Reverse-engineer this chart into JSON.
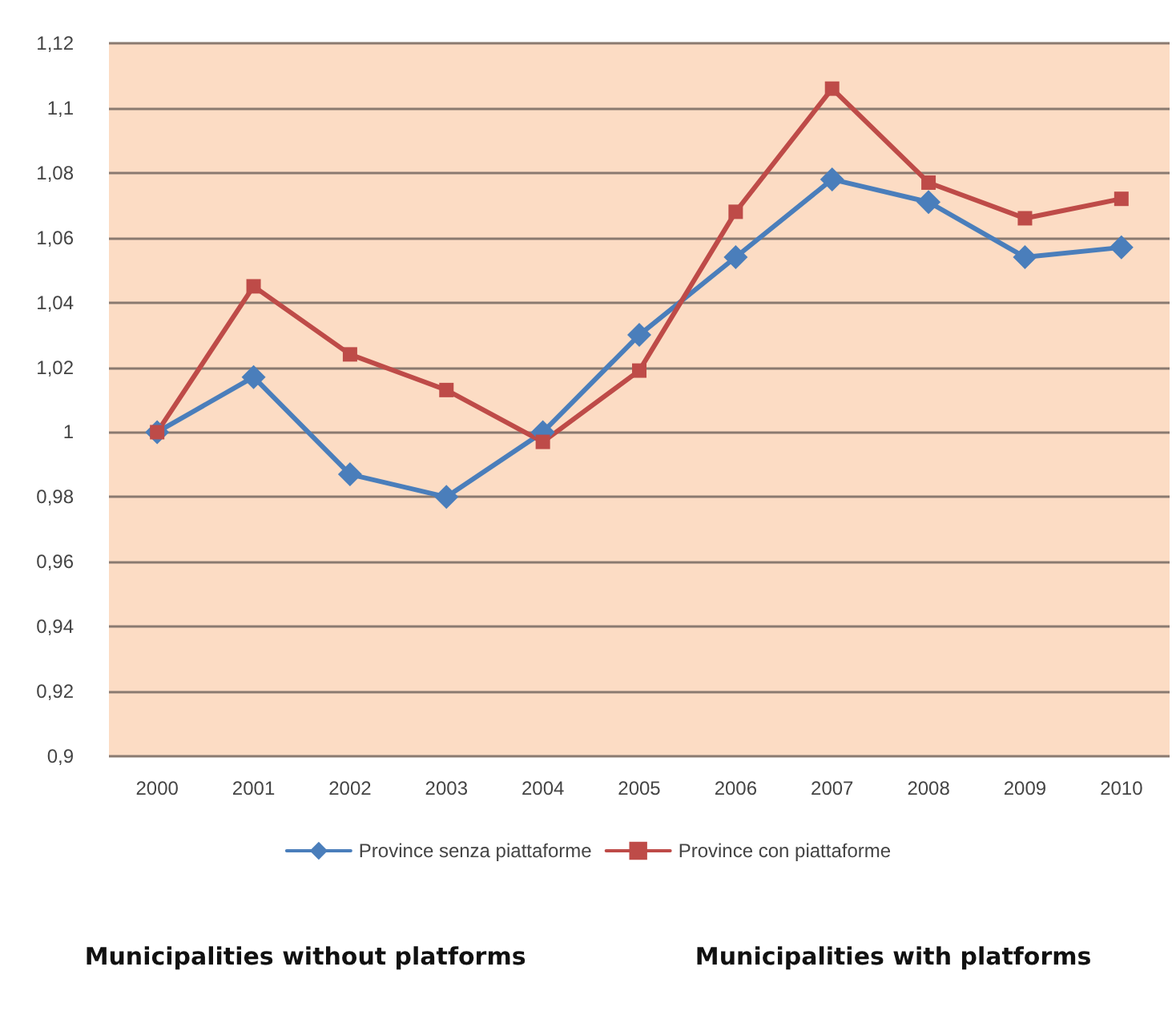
{
  "chart_data": {
    "type": "line",
    "categories": [
      "2000",
      "2001",
      "2002",
      "2003",
      "2004",
      "2005",
      "2006",
      "2007",
      "2008",
      "2009",
      "2010"
    ],
    "series": [
      {
        "name": "Province senza piattaforme",
        "color": "#4a7ebb",
        "marker": "diamond",
        "values": [
          1.0,
          1.017,
          0.987,
          0.98,
          1.0,
          1.03,
          1.054,
          1.078,
          1.071,
          1.054,
          1.057
        ]
      },
      {
        "name": "Province con piattaforme",
        "color": "#be4b48",
        "marker": "square",
        "values": [
          1.0,
          1.045,
          1.024,
          1.013,
          0.997,
          1.019,
          1.068,
          1.106,
          1.077,
          1.066,
          1.072
        ]
      }
    ],
    "ylim": [
      0.9,
      1.12
    ],
    "yticks": [
      {
        "value": 0.9,
        "label": "0,9"
      },
      {
        "value": 0.92,
        "label": "0,92"
      },
      {
        "value": 0.94,
        "label": "0,94"
      },
      {
        "value": 0.96,
        "label": "0,96"
      },
      {
        "value": 0.98,
        "label": "0,98"
      },
      {
        "value": 1,
        "label": "1"
      },
      {
        "value": 1.02,
        "label": "1,02"
      },
      {
        "value": 1.04,
        "label": "1,04"
      },
      {
        "value": 1.06,
        "label": "1,06"
      },
      {
        "value": 1.08,
        "label": "1,08"
      },
      {
        "value": 1.1,
        "label": "1,1"
      },
      {
        "value": 1.12,
        "label": "1,12"
      }
    ],
    "grid": "y",
    "legend": "bottom",
    "line_style": "solid",
    "annotations": [
      "Municipalities without platforms",
      "Municipalities with platforms"
    ]
  }
}
